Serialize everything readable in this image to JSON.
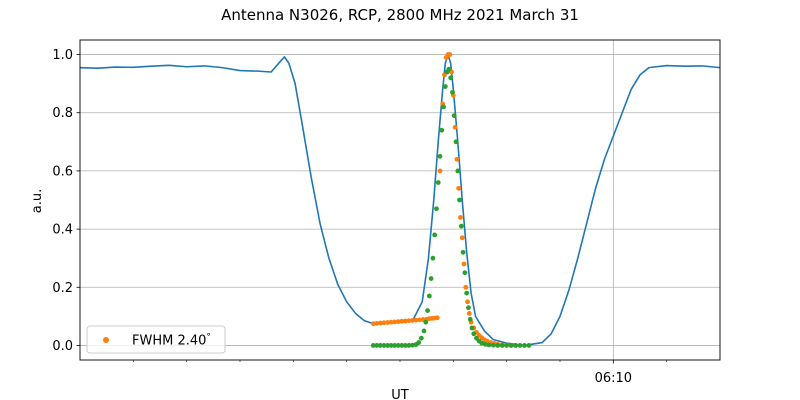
{
  "chart_data": {
    "type": "line",
    "title": "Antenna N3026, RCP, 2800 MHz 2021 March 31",
    "xlabel": "UT",
    "ylabel": "a.u.",
    "xlim": [
      "06:00:00",
      "06:12:00"
    ],
    "ylim": [
      -0.05,
      1.05
    ],
    "x_ticks": [
      {
        "x": "06:10:00",
        "label": "06:10"
      }
    ],
    "x_minor_ticks": [
      "06:01:00",
      "06:02:00",
      "06:03:00",
      "06:04:00",
      "06:05:00",
      "06:06:00",
      "06:07:00",
      "06:08:00",
      "06:09:00",
      "06:11:00"
    ],
    "y_ticks": [
      0.0,
      0.2,
      0.4,
      0.6,
      0.8,
      1.0
    ],
    "y_tick_labels": [
      "0.0",
      "0.2",
      "0.4",
      "0.6",
      "0.8",
      "1.0"
    ],
    "grid": true,
    "legend": {
      "position": "lower-left",
      "entries": [
        {
          "label": "FWHM 2.40$^\\circ$",
          "display": "FWHM 2.40",
          "suffix": "°",
          "series": "fwhm"
        }
      ]
    },
    "series": [
      {
        "id": "scan",
        "type": "line",
        "color": "#1f77b4",
        "points": [
          [
            "06:00:00",
            0.955
          ],
          [
            "06:00:20",
            0.953
          ],
          [
            "06:00:40",
            0.957
          ],
          [
            "06:01:00",
            0.956
          ],
          [
            "06:01:20",
            0.96
          ],
          [
            "06:01:40",
            0.963
          ],
          [
            "06:02:00",
            0.958
          ],
          [
            "06:02:20",
            0.961
          ],
          [
            "06:02:40",
            0.955
          ],
          [
            "06:03:00",
            0.945
          ],
          [
            "06:03:20",
            0.943
          ],
          [
            "06:03:35",
            0.94
          ],
          [
            "06:03:45",
            0.975
          ],
          [
            "06:03:50",
            0.992
          ],
          [
            "06:03:55",
            0.97
          ],
          [
            "06:04:02",
            0.9
          ],
          [
            "06:04:10",
            0.76
          ],
          [
            "06:04:20",
            0.58
          ],
          [
            "06:04:30",
            0.42
          ],
          [
            "06:04:40",
            0.3
          ],
          [
            "06:04:50",
            0.21
          ],
          [
            "06:05:00",
            0.15
          ],
          [
            "06:05:10",
            0.11
          ],
          [
            "06:05:20",
            0.085
          ],
          [
            "06:05:30",
            0.075
          ],
          [
            "06:05:40",
            0.075
          ],
          [
            "06:06:00",
            0.08
          ],
          [
            "06:06:15",
            0.09
          ],
          [
            "06:06:25",
            0.15
          ],
          [
            "06:06:32",
            0.3
          ],
          [
            "06:06:38",
            0.5
          ],
          [
            "06:06:43",
            0.7
          ],
          [
            "06:06:48",
            0.88
          ],
          [
            "06:06:51",
            0.97
          ],
          [
            "06:06:54",
            1.0
          ],
          [
            "06:06:57",
            0.97
          ],
          [
            "06:07:00",
            0.88
          ],
          [
            "06:07:05",
            0.7
          ],
          [
            "06:07:10",
            0.5
          ],
          [
            "06:07:15",
            0.32
          ],
          [
            "06:07:20",
            0.18
          ],
          [
            "06:07:25",
            0.1
          ],
          [
            "06:07:35",
            0.05
          ],
          [
            "06:07:45",
            0.02
          ],
          [
            "06:08:00",
            0.008
          ],
          [
            "06:08:20",
            0.0
          ],
          [
            "06:08:40",
            0.01
          ],
          [
            "06:08:50",
            0.04
          ],
          [
            "06:09:00",
            0.1
          ],
          [
            "06:09:10",
            0.19
          ],
          [
            "06:09:20",
            0.3
          ],
          [
            "06:09:30",
            0.42
          ],
          [
            "06:09:40",
            0.54
          ],
          [
            "06:09:50",
            0.64
          ],
          [
            "06:10:00",
            0.72
          ],
          [
            "06:10:10",
            0.8
          ],
          [
            "06:10:20",
            0.88
          ],
          [
            "06:10:30",
            0.93
          ],
          [
            "06:10:40",
            0.955
          ],
          [
            "06:11:00",
            0.962
          ],
          [
            "06:11:20",
            0.96
          ],
          [
            "06:11:40",
            0.961
          ],
          [
            "06:12:00",
            0.955
          ]
        ]
      },
      {
        "id": "fwhm",
        "type": "scatter",
        "color": "#ff7f0e",
        "points": [
          [
            "06:05:30",
            0.075
          ],
          [
            "06:05:34",
            0.076
          ],
          [
            "06:05:38",
            0.077
          ],
          [
            "06:05:42",
            0.078
          ],
          [
            "06:05:46",
            0.079
          ],
          [
            "06:05:50",
            0.08
          ],
          [
            "06:05:54",
            0.081
          ],
          [
            "06:05:58",
            0.082
          ],
          [
            "06:06:02",
            0.083
          ],
          [
            "06:06:06",
            0.084
          ],
          [
            "06:06:10",
            0.085
          ],
          [
            "06:06:14",
            0.086
          ],
          [
            "06:06:18",
            0.087
          ],
          [
            "06:06:22",
            0.088
          ],
          [
            "06:06:26",
            0.089
          ],
          [
            "06:06:30",
            0.09
          ],
          [
            "06:06:33",
            0.092
          ],
          [
            "06:06:36",
            0.093
          ],
          [
            "06:06:39",
            0.094
          ],
          [
            "06:06:42",
            0.095
          ],
          [
            "06:06:45",
            0.6
          ],
          [
            "06:06:48",
            0.83
          ],
          [
            "06:06:50",
            0.93
          ],
          [
            "06:06:52",
            0.99
          ],
          [
            "06:06:54",
            1.0
          ],
          [
            "06:06:56",
            1.0
          ],
          [
            "06:06:58",
            0.94
          ],
          [
            "06:07:00",
            0.86
          ],
          [
            "06:07:02",
            0.75
          ],
          [
            "06:07:04",
            0.64
          ],
          [
            "06:07:06",
            0.54
          ],
          [
            "06:07:08",
            0.44
          ],
          [
            "06:07:10",
            0.37
          ],
          [
            "06:07:12",
            0.28
          ],
          [
            "06:07:14",
            0.2
          ],
          [
            "06:07:16",
            0.15
          ],
          [
            "06:07:18",
            0.11
          ],
          [
            "06:07:20",
            0.08
          ],
          [
            "06:07:23",
            0.06
          ],
          [
            "06:07:26",
            0.045
          ],
          [
            "06:07:29",
            0.035
          ],
          [
            "06:07:32",
            0.027
          ],
          [
            "06:07:35",
            0.02
          ],
          [
            "06:07:38",
            0.015
          ],
          [
            "06:07:42",
            0.01
          ],
          [
            "06:07:46",
            0.007
          ],
          [
            "06:07:50",
            0.004
          ],
          [
            "06:07:55",
            0.002
          ],
          [
            "06:08:00",
            0.001
          ],
          [
            "06:08:05",
            0.0
          ],
          [
            "06:08:10",
            0.0
          ]
        ]
      },
      {
        "id": "fit",
        "type": "scatter",
        "color": "#2ca02c",
        "points": [
          [
            "06:05:30",
            0.0
          ],
          [
            "06:05:34",
            0.0
          ],
          [
            "06:05:38",
            0.0
          ],
          [
            "06:05:42",
            0.0
          ],
          [
            "06:05:46",
            0.0
          ],
          [
            "06:05:50",
            0.0
          ],
          [
            "06:05:54",
            0.0
          ],
          [
            "06:05:58",
            0.0
          ],
          [
            "06:06:02",
            0.0
          ],
          [
            "06:06:06",
            0.0
          ],
          [
            "06:06:10",
            0.0
          ],
          [
            "06:06:14",
            0.001
          ],
          [
            "06:06:18",
            0.003
          ],
          [
            "06:06:21",
            0.01
          ],
          [
            "06:06:24",
            0.025
          ],
          [
            "06:06:27",
            0.05
          ],
          [
            "06:06:29",
            0.08
          ],
          [
            "06:06:31",
            0.12
          ],
          [
            "06:06:33",
            0.17
          ],
          [
            "06:06:35",
            0.23
          ],
          [
            "06:06:37",
            0.3
          ],
          [
            "06:06:39",
            0.38
          ],
          [
            "06:06:41",
            0.47
          ],
          [
            "06:06:43",
            0.56
          ],
          [
            "06:06:45",
            0.65
          ],
          [
            "06:06:47",
            0.74
          ],
          [
            "06:06:49",
            0.82
          ],
          [
            "06:06:51",
            0.89
          ],
          [
            "06:06:53",
            0.94
          ],
          [
            "06:06:55",
            0.95
          ],
          [
            "06:06:57",
            0.92
          ],
          [
            "06:06:59",
            0.87
          ],
          [
            "06:07:01",
            0.79
          ],
          [
            "06:07:03",
            0.7
          ],
          [
            "06:07:05",
            0.6
          ],
          [
            "06:07:07",
            0.5
          ],
          [
            "06:07:09",
            0.41
          ],
          [
            "06:07:11",
            0.32
          ],
          [
            "06:07:13",
            0.25
          ],
          [
            "06:07:15",
            0.18
          ],
          [
            "06:07:17",
            0.13
          ],
          [
            "06:07:19",
            0.09
          ],
          [
            "06:07:21",
            0.06
          ],
          [
            "06:07:23",
            0.04
          ],
          [
            "06:07:26",
            0.025
          ],
          [
            "06:07:29",
            0.015
          ],
          [
            "06:07:32",
            0.008
          ],
          [
            "06:07:36",
            0.004
          ],
          [
            "06:07:40",
            0.002
          ],
          [
            "06:07:45",
            0.001
          ],
          [
            "06:07:50",
            0.0
          ],
          [
            "06:07:55",
            0.0
          ],
          [
            "06:08:00",
            0.0
          ],
          [
            "06:08:05",
            0.0
          ],
          [
            "06:08:10",
            0.0
          ],
          [
            "06:08:15",
            0.0
          ],
          [
            "06:08:20",
            0.0
          ],
          [
            "06:08:25",
            0.0
          ]
        ]
      }
    ]
  }
}
